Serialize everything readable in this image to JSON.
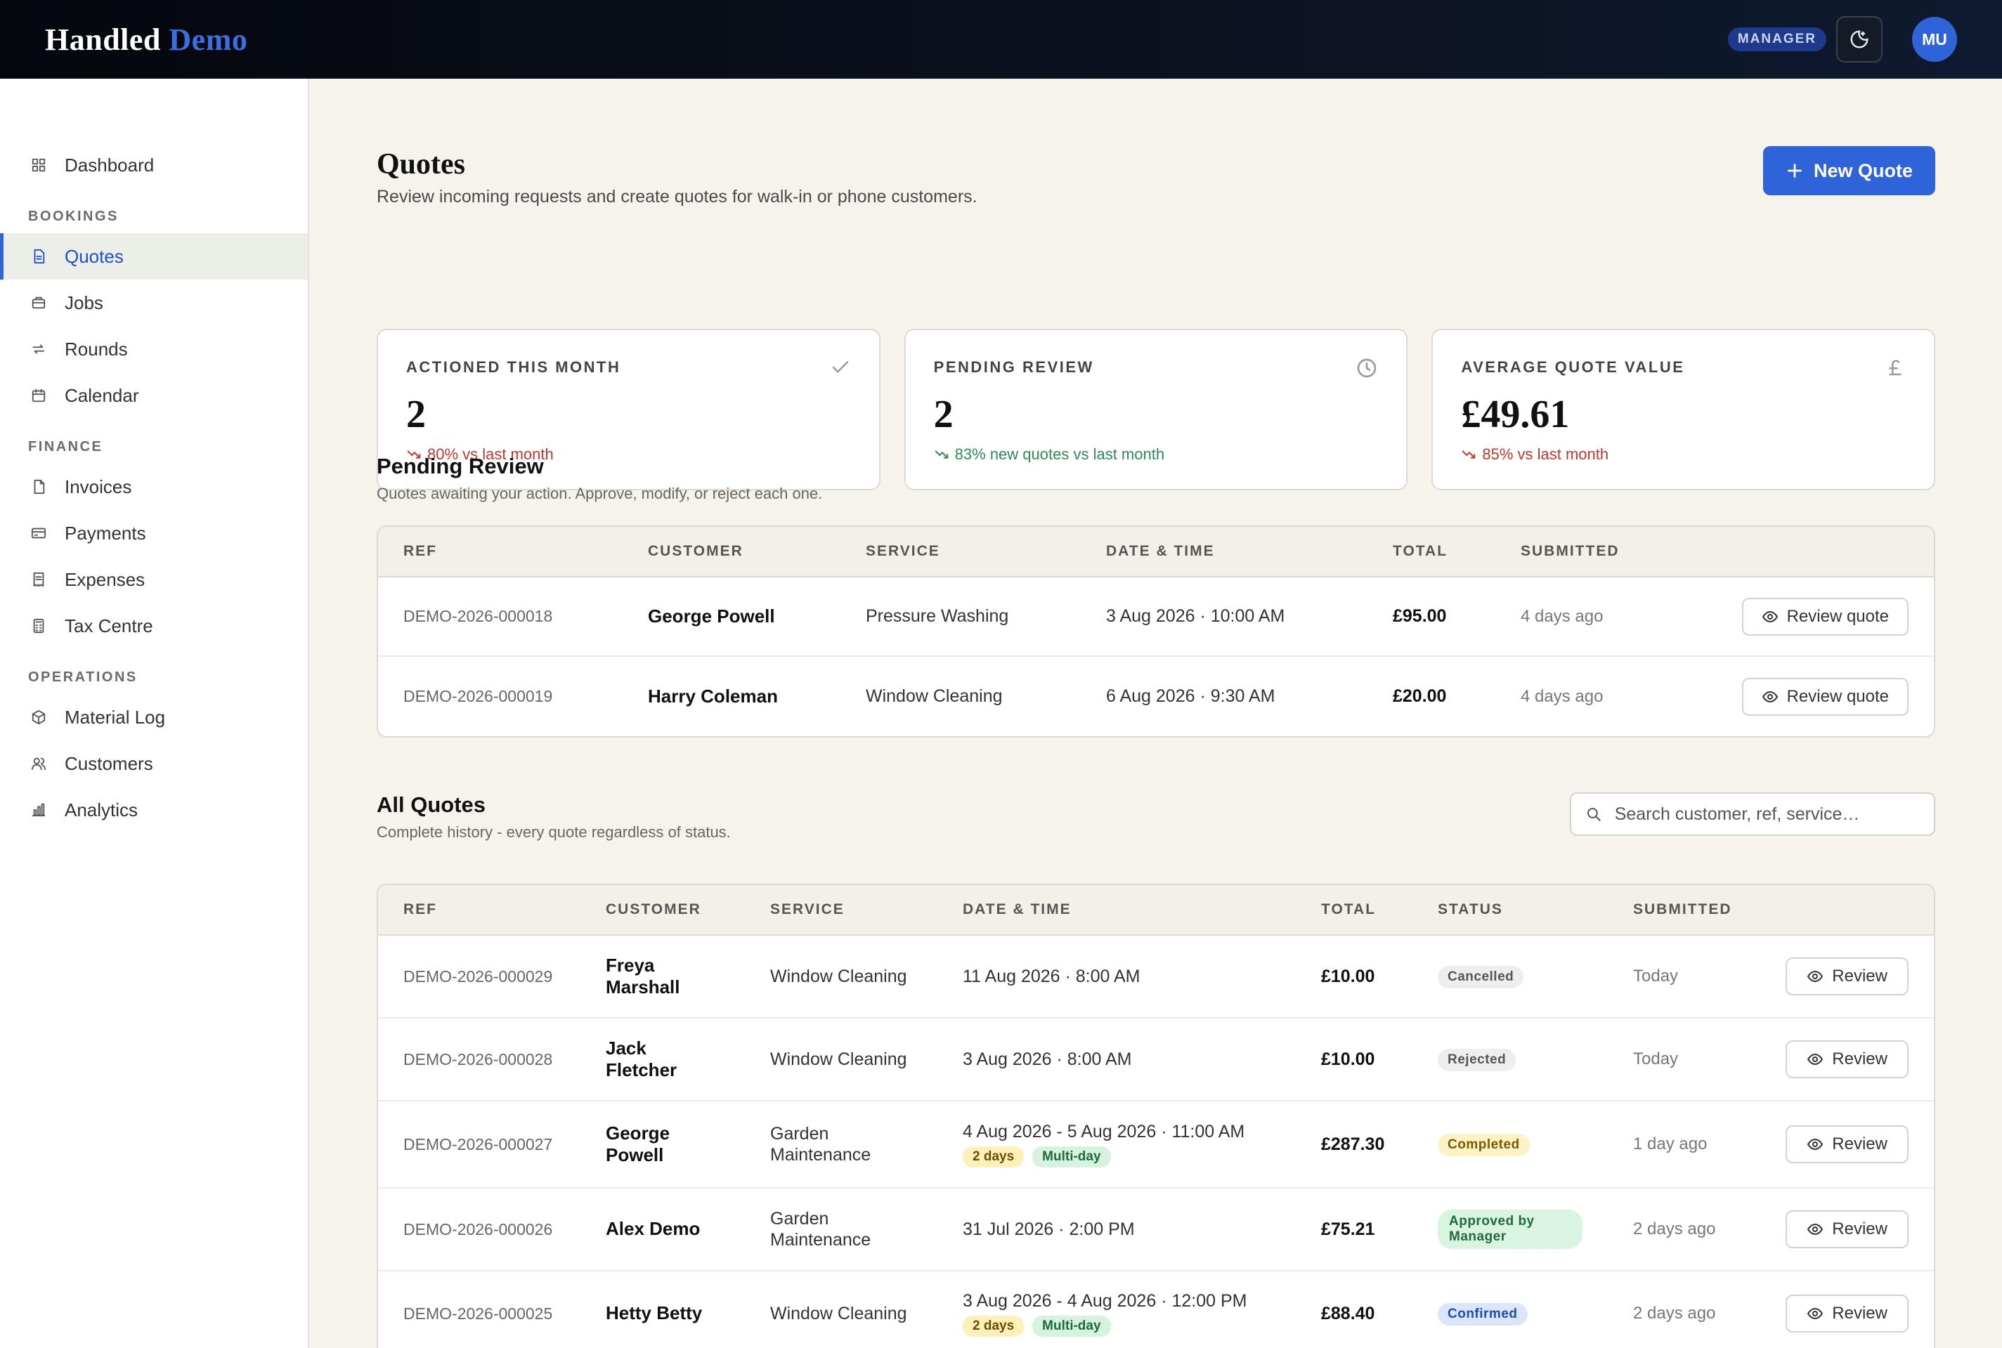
{
  "header": {
    "brand_main": "Handled",
    "brand_accent": "Demo",
    "role": "MANAGER",
    "avatar_initials": "MU"
  },
  "sidebar": {
    "top": [
      {
        "label": "Dashboard",
        "icon": "grid-icon"
      }
    ],
    "sections": [
      {
        "title": "BOOKINGS",
        "items": [
          {
            "label": "Quotes",
            "icon": "document-icon",
            "active": true
          },
          {
            "label": "Jobs",
            "icon": "briefcase-icon"
          },
          {
            "label": "Rounds",
            "icon": "repeat-icon"
          },
          {
            "label": "Calendar",
            "icon": "calendar-icon"
          }
        ]
      },
      {
        "title": "FINANCE",
        "items": [
          {
            "label": "Invoices",
            "icon": "file-icon"
          },
          {
            "label": "Payments",
            "icon": "card-icon"
          },
          {
            "label": "Expenses",
            "icon": "receipt-icon"
          },
          {
            "label": "Tax Centre",
            "icon": "calculator-icon"
          }
        ]
      },
      {
        "title": "OPERATIONS",
        "items": [
          {
            "label": "Material Log",
            "icon": "box-icon"
          },
          {
            "label": "Customers",
            "icon": "users-icon"
          },
          {
            "label": "Analytics",
            "icon": "bar-chart-icon"
          }
        ]
      }
    ]
  },
  "page": {
    "title": "Quotes",
    "subtitle": "Review incoming requests and create quotes for walk-in or phone customers.",
    "new_button": "New Quote"
  },
  "stats": [
    {
      "label": "ACTIONED THIS MONTH",
      "value": "2",
      "change": "80% vs last month",
      "trend": "down",
      "icon": "check-icon"
    },
    {
      "label": "PENDING REVIEW",
      "value": "2",
      "change": "83% new quotes vs last month",
      "trend": "up",
      "icon": "clock-icon"
    },
    {
      "label": "AVERAGE QUOTE VALUE",
      "value": "£49.61",
      "change": "85% vs last month",
      "trend": "down",
      "icon": "pound-icon"
    }
  ],
  "pending": {
    "title": "Pending Review",
    "subtitle": "Quotes awaiting your action. Approve, modify, or reject each one.",
    "columns": [
      "REF",
      "CUSTOMER",
      "SERVICE",
      "DATE & TIME",
      "TOTAL",
      "SUBMITTED"
    ],
    "action_label": "Review quote",
    "rows": [
      {
        "ref": "DEMO-2026-000018",
        "customer": "George Powell",
        "service": "Pressure Washing",
        "datetime": "3 Aug 2026 · 10:00 AM",
        "total": "£95.00",
        "submitted": "4 days ago"
      },
      {
        "ref": "DEMO-2026-000019",
        "customer": "Harry Coleman",
        "service": "Window Cleaning",
        "datetime": "6 Aug 2026 · 9:30 AM",
        "total": "£20.00",
        "submitted": "4 days ago"
      }
    ]
  },
  "all": {
    "title": "All Quotes",
    "subtitle": "Complete history - every quote regardless of status.",
    "search_placeholder": "Search customer, ref, service…",
    "columns": [
      "REF",
      "CUSTOMER",
      "SERVICE",
      "DATE & TIME",
      "TOTAL",
      "STATUS",
      "SUBMITTED"
    ],
    "action_label": "Review",
    "rows": [
      {
        "ref": "DEMO-2026-000029",
        "customer": "Freya Marshall",
        "service": "Window Cleaning",
        "datetime": "11 Aug 2026 · 8:00 AM",
        "tags": [],
        "total": "£10.00",
        "status": "Cancelled",
        "status_color": "gray",
        "submitted": "Today"
      },
      {
        "ref": "DEMO-2026-000028",
        "customer": "Jack Fletcher",
        "service": "Window Cleaning",
        "datetime": "3 Aug 2026 · 8:00 AM",
        "tags": [],
        "total": "£10.00",
        "status": "Rejected",
        "status_color": "gray",
        "submitted": "Today"
      },
      {
        "ref": "DEMO-2026-000027",
        "customer": "George Powell",
        "service": "Garden Maintenance",
        "datetime": "4 Aug 2026 - 5 Aug 2026 · 11:00 AM",
        "tags": [
          "2 days",
          "Multi-day"
        ],
        "total": "£287.30",
        "status": "Completed",
        "status_color": "yellow",
        "submitted": "1 day ago"
      },
      {
        "ref": "DEMO-2026-000026",
        "customer": "Alex Demo",
        "service": "Garden Maintenance",
        "datetime": "31 Jul 2026 · 2:00 PM",
        "tags": [],
        "total": "£75.21",
        "status": "Approved by Manager",
        "status_color": "green",
        "submitted": "2 days ago"
      },
      {
        "ref": "DEMO-2026-000025",
        "customer": "Hetty Betty",
        "service": "Window Cleaning",
        "datetime": "3 Aug 2026 - 4 Aug 2026 · 12:00 PM",
        "tags": [
          "2 days",
          "Multi-day"
        ],
        "total": "£88.40",
        "status": "Confirmed",
        "status_color": "blue",
        "submitted": "2 days ago"
      }
    ]
  }
}
